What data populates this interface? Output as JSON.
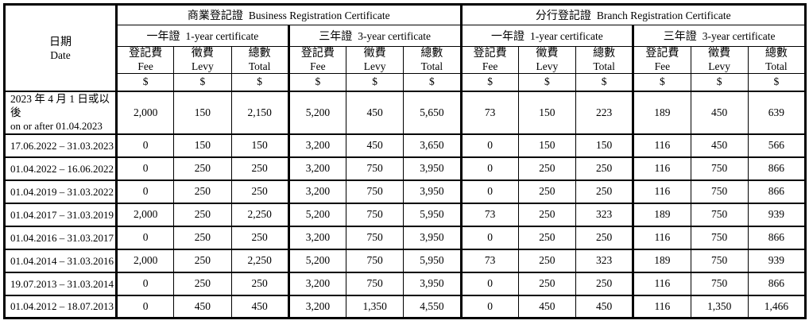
{
  "table": {
    "date_header": {
      "zh": "日期",
      "en": "Date"
    },
    "sections": [
      {
        "zh": "商業登記證",
        "en": "Business Registration Certificate"
      },
      {
        "zh": "分行登記證",
        "en": "Branch Registration Certificate"
      }
    ],
    "cert_types": [
      {
        "zh": "一年證",
        "en": "1-year certificate"
      },
      {
        "zh": "三年證",
        "en": "3-year certificate"
      },
      {
        "zh": "一年證",
        "en": "1-year certificate"
      },
      {
        "zh": "三年證",
        "en": "3-year certificate"
      }
    ],
    "fee_col_labels": [
      {
        "zh": "登記費",
        "en": "Fee"
      },
      {
        "zh": "徵費",
        "en": "Levy"
      },
      {
        "zh": "總數",
        "en": "Total"
      }
    ],
    "currency_symbol": "$",
    "rows": [
      {
        "date_lines": [
          "2023 年 4 月 1 日或以後",
          "on or after 01.04.2023"
        ],
        "values": [
          "2,000",
          "150",
          "2,150",
          "5,200",
          "450",
          "5,650",
          "73",
          "150",
          "223",
          "189",
          "450",
          "639"
        ]
      },
      {
        "date_lines": [
          "17.06.2022 – 31.03.2023"
        ],
        "values": [
          "0",
          "150",
          "150",
          "3,200",
          "450",
          "3,650",
          "0",
          "150",
          "150",
          "116",
          "450",
          "566"
        ]
      },
      {
        "date_lines": [
          "01.04.2022 – 16.06.2022"
        ],
        "values": [
          "0",
          "250",
          "250",
          "3,200",
          "750",
          "3,950",
          "0",
          "250",
          "250",
          "116",
          "750",
          "866"
        ]
      },
      {
        "date_lines": [
          "01.04.2019 – 31.03.2022"
        ],
        "values": [
          "0",
          "250",
          "250",
          "3,200",
          "750",
          "3,950",
          "0",
          "250",
          "250",
          "116",
          "750",
          "866"
        ]
      },
      {
        "date_lines": [
          "01.04.2017 – 31.03.2019"
        ],
        "values": [
          "2,000",
          "250",
          "2,250",
          "5,200",
          "750",
          "5,950",
          "73",
          "250",
          "323",
          "189",
          "750",
          "939"
        ]
      },
      {
        "date_lines": [
          "01.04.2016 – 31.03.2017"
        ],
        "values": [
          "0",
          "250",
          "250",
          "3,200",
          "750",
          "3,950",
          "0",
          "250",
          "250",
          "116",
          "750",
          "866"
        ]
      },
      {
        "date_lines": [
          "01.04.2014 – 31.03.2016"
        ],
        "values": [
          "2,000",
          "250",
          "2,250",
          "5,200",
          "750",
          "5,950",
          "73",
          "250",
          "323",
          "189",
          "750",
          "939"
        ]
      },
      {
        "date_lines": [
          "19.07.2013 – 31.03.2014"
        ],
        "values": [
          "0",
          "250",
          "250",
          "3,200",
          "750",
          "3,950",
          "0",
          "250",
          "250",
          "116",
          "750",
          "866"
        ]
      },
      {
        "date_lines": [
          "01.04.2012 – 18.07.2013"
        ],
        "values": [
          "0",
          "450",
          "450",
          "3,200",
          "1,350",
          "4,550",
          "0",
          "450",
          "450",
          "116",
          "1,350",
          "1,466"
        ]
      }
    ]
  },
  "colors": {
    "background": "#ffffff",
    "border": "#000000",
    "text": "#000000"
  }
}
